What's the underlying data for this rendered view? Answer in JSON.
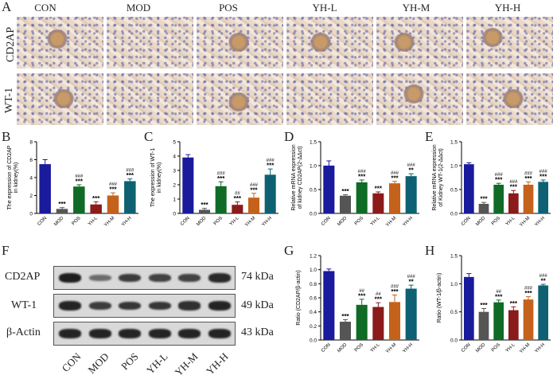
{
  "panel_letters": [
    "A",
    "B",
    "C",
    "D",
    "E",
    "F",
    "G",
    "H"
  ],
  "panel_a": {
    "groups": [
      "CON",
      "MOD",
      "POS",
      "YH-L",
      "YH-M",
      "YH-H"
    ],
    "rows": [
      "CD2AP",
      "WT-1"
    ]
  },
  "panel_f": {
    "rows": [
      {
        "name": "CD2AP",
        "kda": "74 kDa"
      },
      {
        "name": "WT-1",
        "kda": "49 kDa"
      },
      {
        "name": "β-Actin",
        "kda": "43 kDa"
      }
    ],
    "lanes": [
      "CON",
      "MOD",
      "POS",
      "YH-L",
      "YH-M",
      "YH-H"
    ],
    "band_intensity": {
      "CD2AP": [
        1.0,
        0.35,
        0.75,
        0.7,
        0.7,
        0.9
      ],
      "WT-1": [
        0.95,
        0.75,
        0.8,
        0.8,
        0.85,
        0.95
      ],
      "β-Actin": [
        0.95,
        0.95,
        0.95,
        0.95,
        0.95,
        0.95
      ]
    }
  },
  "colors": [
    "#1a1a9c",
    "#555555",
    "#0f6b25",
    "#8b1a1a",
    "#c4621c",
    "#0e6172"
  ],
  "chart_data": [
    {
      "id": "B",
      "type": "bar",
      "categories": [
        "CON",
        "MOD",
        "POS",
        "YH-L",
        "YH-M",
        "YH-H"
      ],
      "values": [
        5.5,
        0.5,
        3.0,
        1.0,
        2.0,
        3.6
      ],
      "errors": [
        0.5,
        0.15,
        0.2,
        0.3,
        0.3,
        0.25
      ],
      "ylabel": [
        "The expression of CD2AP",
        "in kidney(%)"
      ],
      "ylim": [
        0,
        8
      ],
      "ticks": [
        0,
        2,
        4,
        6,
        8
      ],
      "sig_top": [
        "",
        "***",
        "***",
        "***",
        "***",
        "***"
      ],
      "sig_hash": [
        "",
        "",
        "###",
        "",
        "###",
        "###"
      ]
    },
    {
      "id": "C",
      "type": "bar",
      "categories": [
        "CON",
        "MOD",
        "POS",
        "YH-L",
        "YH-M",
        "YH-H"
      ],
      "values": [
        3.9,
        0.25,
        1.9,
        0.6,
        1.1,
        2.7
      ],
      "errors": [
        0.2,
        0.1,
        0.3,
        0.2,
        0.3,
        0.4
      ],
      "ylabel": [
        "The expression of WT-1",
        "in kidney(%)"
      ],
      "ylim": [
        0,
        5
      ],
      "ticks": [
        0,
        1,
        2,
        3,
        4,
        5
      ],
      "sig_top": [
        "",
        "***",
        "***",
        "***",
        "***",
        "***"
      ],
      "sig_hash": [
        "",
        "",
        "###",
        "##",
        "###",
        "###"
      ]
    },
    {
      "id": "D",
      "type": "bar",
      "categories": [
        "CON",
        "MOD",
        "POS",
        "YH-L",
        "YH-M",
        "YH-H"
      ],
      "values": [
        1.0,
        0.37,
        0.65,
        0.42,
        0.63,
        0.78
      ],
      "errors": [
        0.1,
        0.02,
        0.05,
        0.03,
        0.04,
        0.05
      ],
      "ylabel": [
        "Relative mRNA expression",
        "of kidney CD2AP(2-ΔΔct)"
      ],
      "ylim": [
        0,
        1.5
      ],
      "ticks": [
        0.0,
        0.5,
        1.0,
        1.5
      ],
      "sig_top": [
        "",
        "***",
        "***",
        "***",
        "***",
        "**"
      ],
      "sig_hash": [
        "",
        "",
        "###",
        "",
        "###",
        "###"
      ]
    },
    {
      "id": "E",
      "type": "bar",
      "categories": [
        "CON",
        "MOD",
        "POS",
        "YH-L",
        "YH-M",
        "YH-H"
      ],
      "values": [
        1.03,
        0.2,
        0.6,
        0.42,
        0.6,
        0.66
      ],
      "errors": [
        0.03,
        0.03,
        0.03,
        0.06,
        0.06,
        0.04
      ],
      "ylabel": [
        "Relative mRNA expression",
        "of Kidney WT-1(2-ΔΔct)"
      ],
      "ylim": [
        0,
        1.5
      ],
      "ticks": [
        0.0,
        0.5,
        1.0,
        1.5
      ],
      "sig_top": [
        "",
        "***",
        "***",
        "***",
        "***",
        "***"
      ],
      "sig_hash": [
        "",
        "",
        "###",
        "###",
        "###",
        "###"
      ]
    },
    {
      "id": "G",
      "type": "bar",
      "categories": [
        "CON",
        "MOD",
        "POS",
        "YH-L",
        "YH-M",
        "YH-H"
      ],
      "values": [
        0.98,
        0.26,
        0.5,
        0.47,
        0.54,
        0.73
      ],
      "errors": [
        0.03,
        0.03,
        0.08,
        0.06,
        0.1,
        0.05
      ],
      "ylabel": [
        "Ratio (CD2AP/β-actin)"
      ],
      "ylim": [
        0,
        1.2
      ],
      "ticks": [
        0.0,
        0.2,
        0.4,
        0.6,
        0.8,
        1.0,
        1.2
      ],
      "sig_top": [
        "",
        "***",
        "***",
        "***",
        "***",
        "**"
      ],
      "sig_hash": [
        "",
        "",
        "##",
        "##",
        "###",
        "###"
      ]
    },
    {
      "id": "H",
      "type": "bar",
      "categories": [
        "CON",
        "MOD",
        "POS",
        "YH-L",
        "YH-M",
        "YH-H"
      ],
      "values": [
        1.12,
        0.5,
        0.67,
        0.53,
        0.72,
        0.97
      ],
      "errors": [
        0.06,
        0.06,
        0.04,
        0.06,
        0.05,
        0.02
      ],
      "ylabel": [
        "Ratio (WT-1/β-actin)"
      ],
      "ylim": [
        0,
        1.5
      ],
      "ticks": [
        0.0,
        0.5,
        1.0,
        1.5
      ],
      "sig_top": [
        "",
        "***",
        "***",
        "***",
        "***",
        "**"
      ],
      "sig_hash": [
        "",
        "",
        "##",
        "",
        "###",
        "###"
      ]
    }
  ]
}
